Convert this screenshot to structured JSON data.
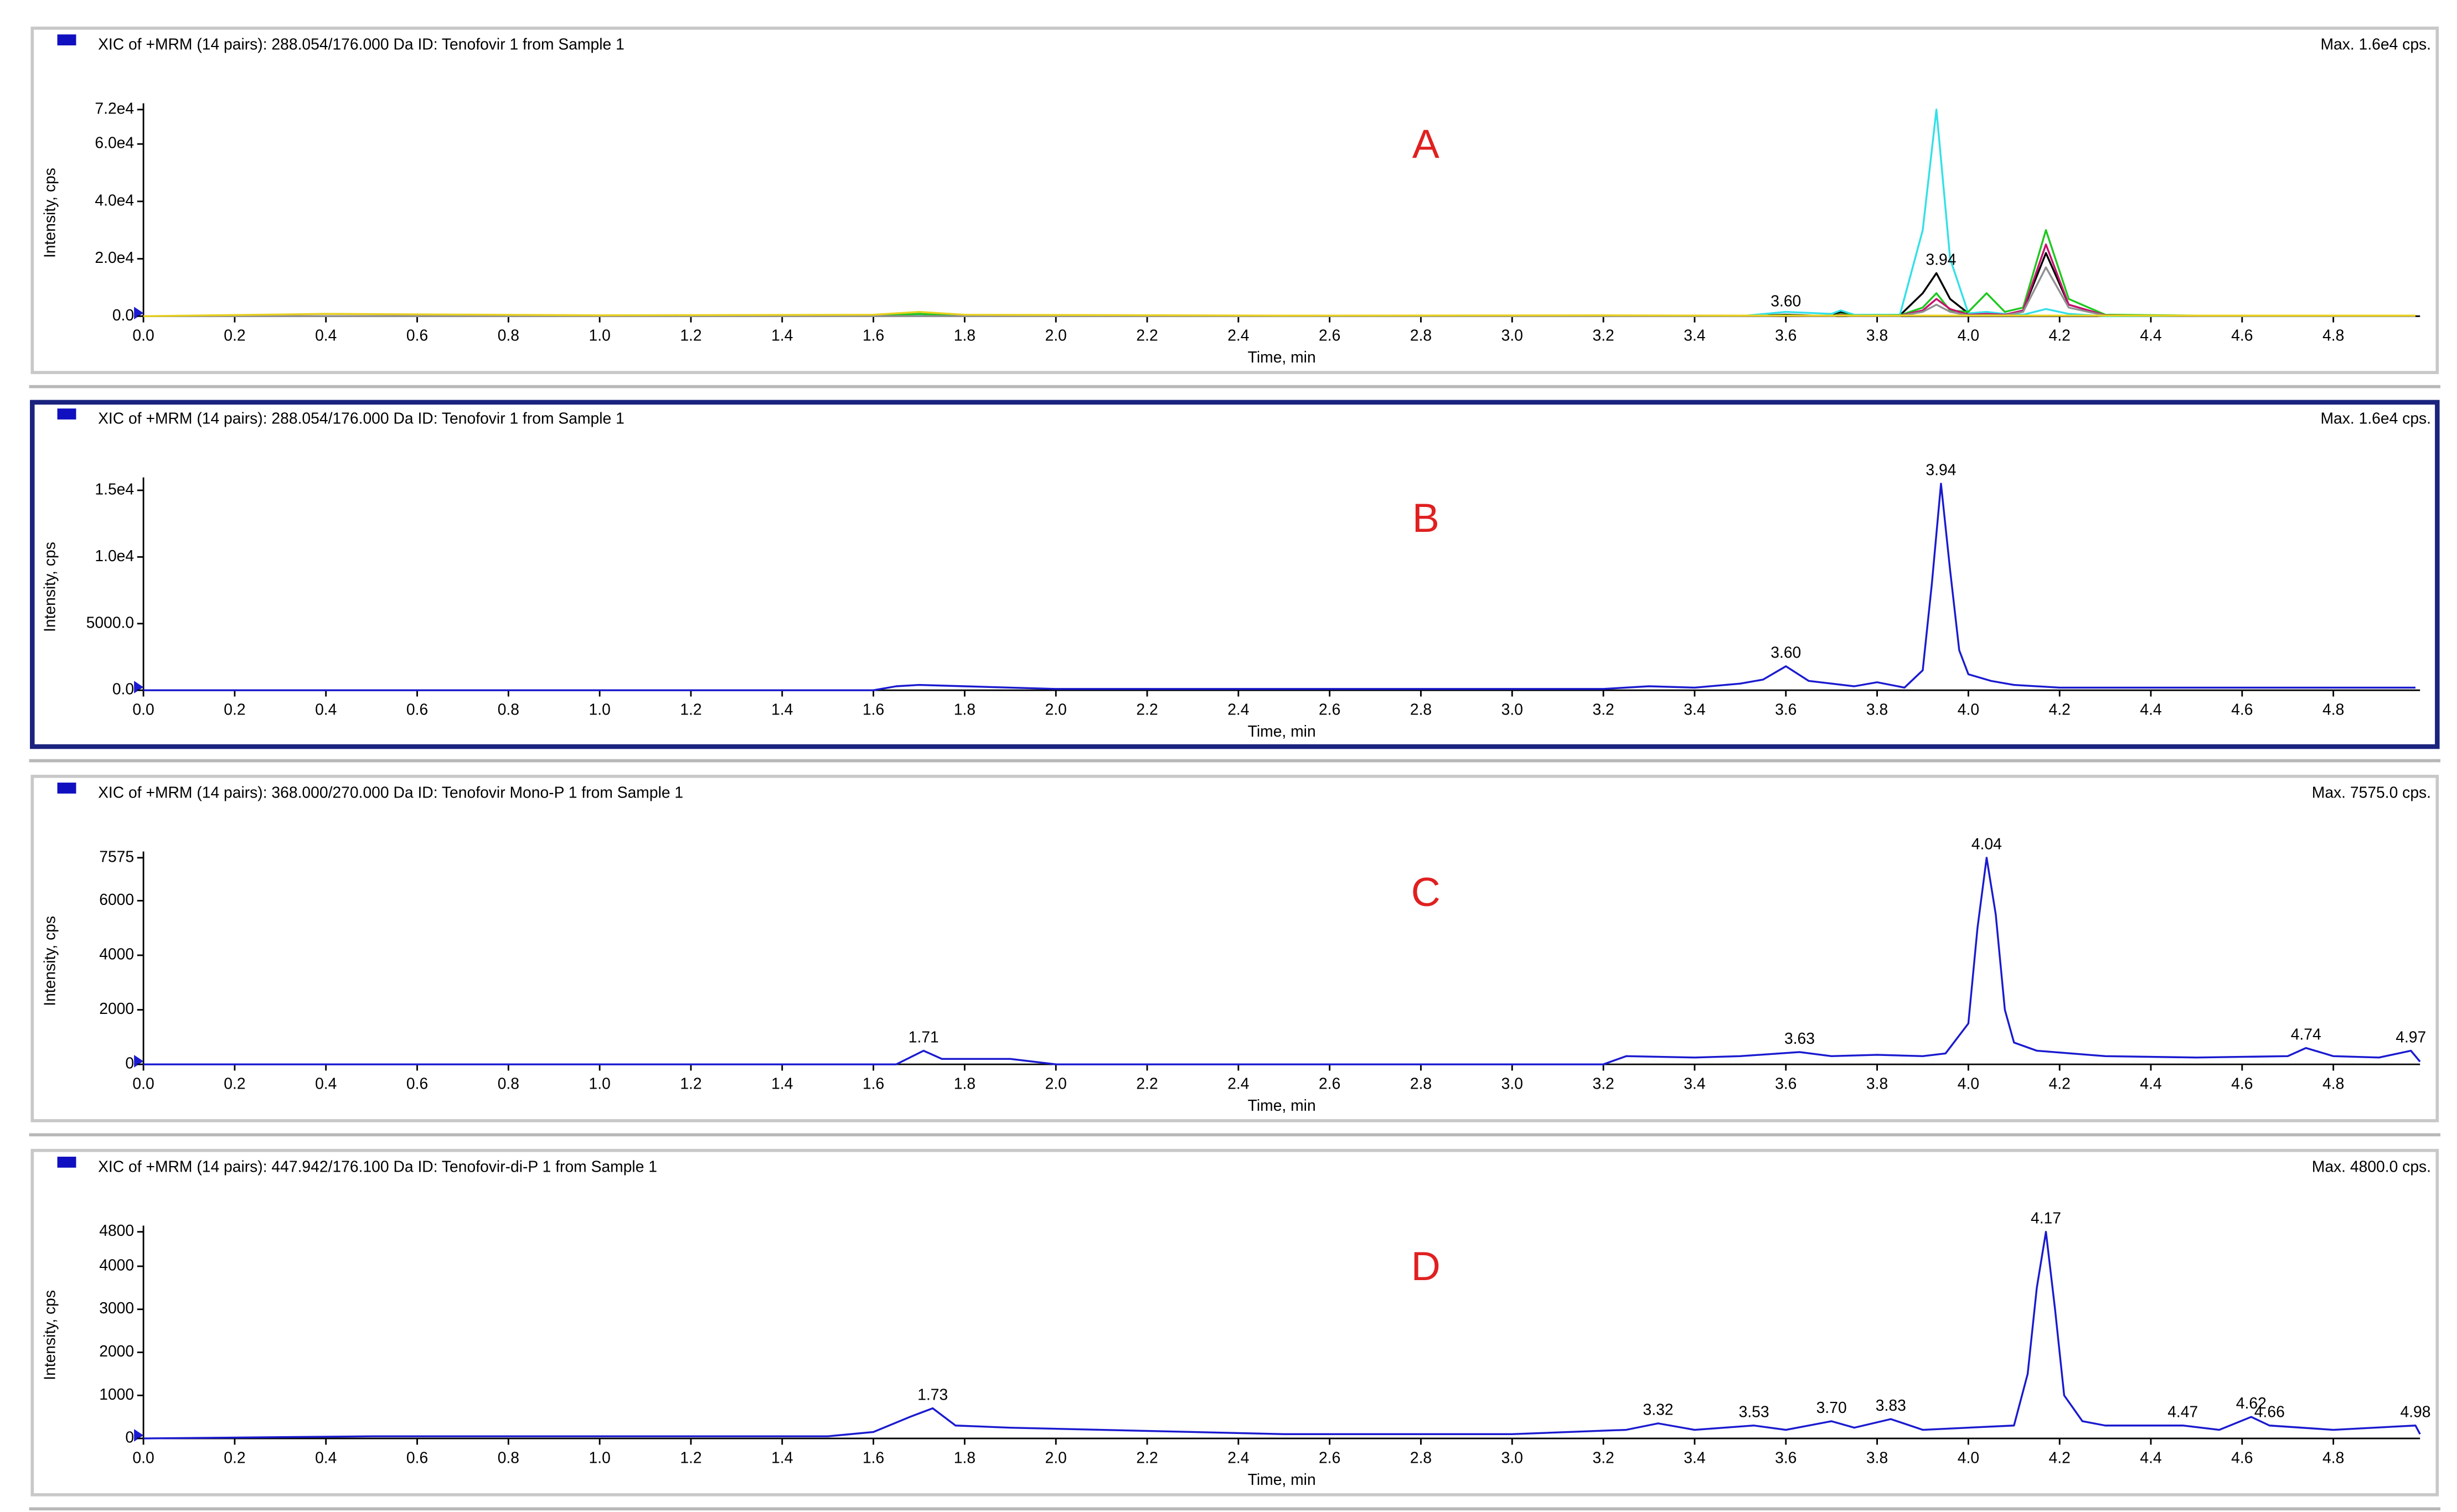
{
  "chart_data": [
    {
      "type": "line",
      "title": "XIC of +MRM (14 pairs): 288.054/176.000 Da ID: Tenofovir 1 from Sample 1",
      "max_label": "Max. 1.6e4 cps.",
      "panel_label": "A",
      "x_label": "Time, min",
      "y_label": "Intensity, cps",
      "xlim": [
        0,
        4.99
      ],
      "ylim": [
        0,
        72000
      ],
      "xticks": [
        {
          "value": 0,
          "label": "0.0"
        },
        0.2,
        0.4,
        0.6,
        0.8,
        {
          "value": 1,
          "label": "1.0"
        },
        1.2,
        1.4,
        1.6,
        1.8,
        {
          "value": 2,
          "label": "2.0"
        },
        2.2,
        2.4,
        2.6,
        2.8,
        {
          "value": 3,
          "label": "3.0"
        },
        3.2,
        3.4,
        3.6,
        3.8,
        {
          "value": 4,
          "label": "4.0"
        },
        4.2,
        4.4,
        4.6,
        4.8
      ],
      "yticks": [
        {
          "value": 0,
          "label": "0.0"
        },
        {
          "value": 20000,
          "label": "2.0e4"
        },
        {
          "value": 40000,
          "label": "4.0e4"
        },
        {
          "value": 60000,
          "label": "6.0e4"
        },
        {
          "value": 72000,
          "label": "7.2e4"
        }
      ],
      "peaks": [
        {
          "value": 3.6,
          "label": "3.60"
        },
        3.94
      ],
      "x": [
        0,
        0.4,
        1.0,
        1.6,
        1.7,
        1.8,
        2.5,
        3.2,
        3.5,
        3.6,
        3.7,
        3.72,
        3.75,
        3.85,
        3.9,
        3.93,
        3.96,
        4.0,
        4.04,
        4.08,
        4.12,
        4.17,
        4.22,
        4.3,
        4.5,
        4.98
      ],
      "series": [
        {
          "color": "#000000",
          "values": [
            0,
            0,
            0,
            0,
            0,
            0,
            0,
            0,
            0,
            500,
            0,
            1500,
            200,
            300,
            8000,
            15000,
            6000,
            1000,
            500,
            300,
            2000,
            22000,
            4000,
            300,
            0,
            0
          ]
        },
        {
          "color": "#33e0e8",
          "values": [
            0,
            0,
            0,
            0,
            500,
            0,
            0,
            0,
            0,
            1500,
            800,
            2000,
            500,
            500,
            30000,
            72000,
            20000,
            1000,
            1500,
            800,
            500,
            2500,
            800,
            0,
            0,
            0
          ]
        },
        {
          "color": "#1ec81e",
          "values": [
            0,
            0,
            0,
            0,
            800,
            0,
            0,
            0,
            0,
            300,
            0,
            800,
            200,
            300,
            3000,
            8000,
            2000,
            1500,
            8000,
            1500,
            3000,
            30000,
            6000,
            500,
            200,
            200
          ]
        },
        {
          "color": "#c8106e",
          "values": [
            0,
            0,
            0,
            0,
            0,
            0,
            0,
            0,
            0,
            200,
            0,
            500,
            0,
            200,
            2000,
            6000,
            2500,
            500,
            800,
            500,
            2000,
            25000,
            4000,
            300,
            0,
            0
          ]
        },
        {
          "color": "#909090",
          "values": [
            0,
            0,
            0,
            0,
            0,
            0,
            0,
            0,
            0,
            200,
            0,
            300,
            0,
            100,
            1500,
            4000,
            1500,
            300,
            400,
            300,
            1500,
            17000,
            3000,
            200,
            0,
            0
          ]
        },
        {
          "color": "#e8d020",
          "values": [
            0,
            800,
            300,
            500,
            1500,
            500,
            200,
            300,
            200,
            200,
            200,
            200,
            200,
            200,
            200,
            200,
            200,
            200,
            200,
            200,
            200,
            200,
            200,
            200,
            200,
            200
          ]
        }
      ]
    },
    {
      "type": "line",
      "title": "XIC of +MRM (14 pairs): 288.054/176.000 Da ID: Tenofovir 1 from Sample 1",
      "max_label": "Max. 1.6e4 cps.",
      "panel_label": "B",
      "x_label": "Time, min",
      "y_label": "Intensity, cps",
      "xlim": [
        0,
        4.99
      ],
      "ylim": [
        0,
        15500
      ],
      "xticks": [
        {
          "value": 0,
          "label": "0.0"
        },
        0.2,
        0.4,
        0.6,
        0.8,
        {
          "value": 1,
          "label": "1.0"
        },
        1.2,
        1.4,
        1.6,
        1.8,
        {
          "value": 2,
          "label": "2.0"
        },
        2.2,
        2.4,
        2.6,
        2.8,
        {
          "value": 3,
          "label": "3.0"
        },
        3.2,
        3.4,
        3.6,
        3.8,
        {
          "value": 4,
          "label": "4.0"
        },
        4.2,
        4.4,
        4.6,
        4.8
      ],
      "yticks": [
        {
          "value": 0,
          "label": "0.0"
        },
        {
          "value": 5000,
          "label": "5000.0"
        },
        {
          "value": 10000,
          "label": "1.0e4"
        },
        {
          "value": 15000,
          "label": "1.5e4"
        }
      ],
      "peaks": [
        {
          "value": 3.6,
          "label": "3.60"
        },
        3.94
      ],
      "x": [
        0,
        1.6,
        1.65,
        1.7,
        1.8,
        2.0,
        3.2,
        3.3,
        3.4,
        3.5,
        3.55,
        3.6,
        3.65,
        3.7,
        3.75,
        3.8,
        3.86,
        3.9,
        3.92,
        3.94,
        3.96,
        3.98,
        4.0,
        4.05,
        4.1,
        4.2,
        4.5,
        4.98
      ],
      "series": [
        {
          "color": "#1a1ad0",
          "values": [
            0,
            0,
            300,
            400,
            300,
            100,
            100,
            300,
            200,
            500,
            800,
            1800,
            700,
            500,
            300,
            600,
            200,
            1500,
            8000,
            15500,
            9000,
            3000,
            1200,
            700,
            400,
            200,
            200,
            200
          ]
        }
      ]
    },
    {
      "type": "line",
      "title": "XIC of +MRM (14 pairs): 368.000/270.000 Da ID: Tenofovir Mono-P 1 from Sample 1",
      "max_label": "Max. 7575.0 cps.",
      "panel_label": "C",
      "x_label": "Time, min",
      "y_label": "Intensity, cps",
      "xlim": [
        0,
        4.99
      ],
      "ylim": [
        0,
        7575
      ],
      "xticks": [
        {
          "value": 0,
          "label": "0.0"
        },
        0.2,
        0.4,
        0.6,
        0.8,
        {
          "value": 1,
          "label": "1.0"
        },
        1.2,
        1.4,
        1.6,
        1.8,
        {
          "value": 2,
          "label": "2.0"
        },
        2.2,
        2.4,
        2.6,
        2.8,
        {
          "value": 3,
          "label": "3.0"
        },
        3.2,
        3.4,
        3.6,
        3.8,
        {
          "value": 4,
          "label": "4.0"
        },
        4.2,
        4.4,
        4.6,
        4.8
      ],
      "yticks": [
        0,
        2000,
        4000,
        6000,
        7575
      ],
      "peaks": [
        1.71,
        3.63,
        4.04,
        4.74,
        4.97
      ],
      "x": [
        0,
        1.65,
        1.71,
        1.75,
        1.9,
        2.0,
        3.2,
        3.25,
        3.4,
        3.5,
        3.63,
        3.7,
        3.8,
        3.9,
        3.95,
        4.0,
        4.02,
        4.04,
        4.06,
        4.08,
        4.1,
        4.15,
        4.3,
        4.5,
        4.7,
        4.74,
        4.8,
        4.9,
        4.97,
        4.99
      ],
      "series": [
        {
          "color": "#1a1ad0",
          "values": [
            0,
            0,
            500,
            200,
            200,
            0,
            0,
            300,
            250,
            300,
            450,
            300,
            350,
            300,
            400,
            1500,
            5000,
            7575,
            5500,
            2000,
            800,
            500,
            300,
            250,
            300,
            600,
            300,
            250,
            500,
            100
          ]
        }
      ]
    },
    {
      "type": "line",
      "title": "XIC of +MRM (14 pairs): 447.942/176.100 Da ID: Tenofovir-di-P 1 from Sample 1",
      "max_label": "Max. 4800.0 cps.",
      "panel_label": "D",
      "x_label": "Time, min",
      "y_label": "Intensity, cps",
      "xlim": [
        0,
        4.99
      ],
      "ylim": [
        0,
        4800
      ],
      "xticks": [
        {
          "value": 0,
          "label": "0.0"
        },
        0.2,
        0.4,
        0.6,
        0.8,
        {
          "value": 1,
          "label": "1.0"
        },
        1.2,
        1.4,
        1.6,
        1.8,
        {
          "value": 2,
          "label": "2.0"
        },
        2.2,
        2.4,
        2.6,
        2.8,
        {
          "value": 3,
          "label": "3.0"
        },
        3.2,
        3.4,
        3.6,
        3.8,
        {
          "value": 4,
          "label": "4.0"
        },
        4.2,
        4.4,
        4.6,
        4.8
      ],
      "yticks": [
        0,
        1000,
        2000,
        3000,
        4000,
        4800
      ],
      "peaks": [
        1.73,
        3.32,
        3.53,
        {
          "value": 3.7,
          "label": "3.70"
        },
        3.83,
        4.17,
        4.47,
        4.62,
        4.66,
        4.98
      ],
      "x": [
        0,
        0.5,
        1.0,
        1.5,
        1.6,
        1.68,
        1.73,
        1.78,
        1.9,
        2.5,
        3.0,
        3.25,
        3.32,
        3.4,
        3.53,
        3.6,
        3.7,
        3.75,
        3.83,
        3.9,
        4.1,
        4.13,
        4.15,
        4.17,
        4.19,
        4.21,
        4.25,
        4.3,
        4.47,
        4.55,
        4.62,
        4.66,
        4.8,
        4.98,
        4.99
      ],
      "series": [
        {
          "color": "#1a1ad0",
          "values": [
            0,
            50,
            50,
            50,
            150,
            500,
            700,
            300,
            250,
            100,
            100,
            200,
            350,
            200,
            300,
            200,
            400,
            250,
            450,
            200,
            300,
            1500,
            3500,
            4800,
            3000,
            1000,
            400,
            300,
            300,
            200,
            500,
            300,
            200,
            300,
            100
          ]
        }
      ]
    }
  ]
}
